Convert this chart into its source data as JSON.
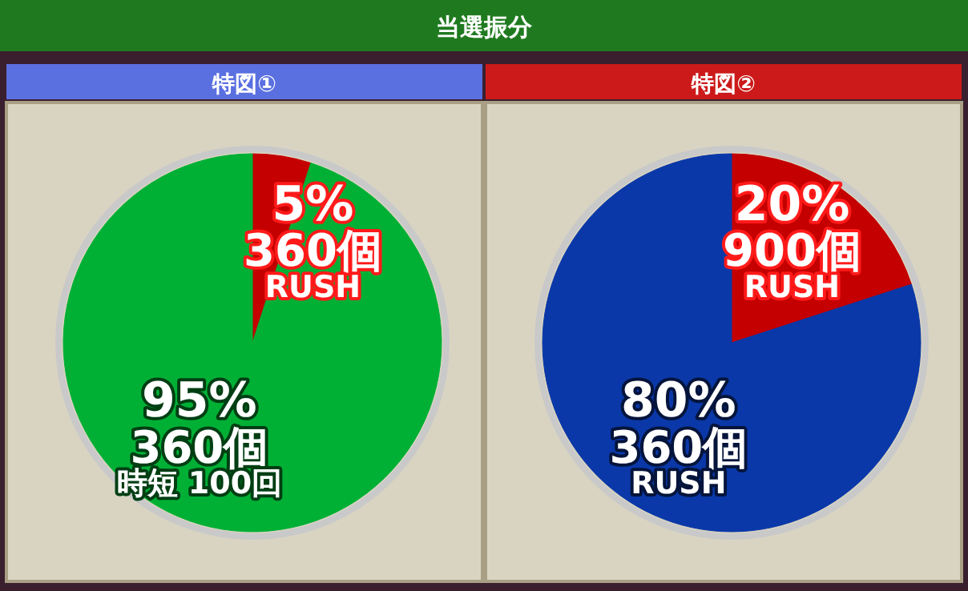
{
  "chart_data": [
    {
      "type": "pie",
      "title": "特図①",
      "annotations": [
        "当選振分"
      ],
      "categories": [
        "360個RUSH",
        "360個時短 100回"
      ],
      "values": [
        5,
        95
      ],
      "value_labels": [
        "5%",
        "95%"
      ],
      "colors": [
        "#c40000",
        "#00b035"
      ]
    },
    {
      "type": "pie",
      "title": "特図②",
      "categories": [
        "900個RUSH",
        "360個RUSH"
      ],
      "values": [
        20,
        80
      ],
      "value_labels": [
        "20%",
        "80%"
      ],
      "colors": [
        "#c40000",
        "#0a38a8"
      ]
    }
  ]
}
